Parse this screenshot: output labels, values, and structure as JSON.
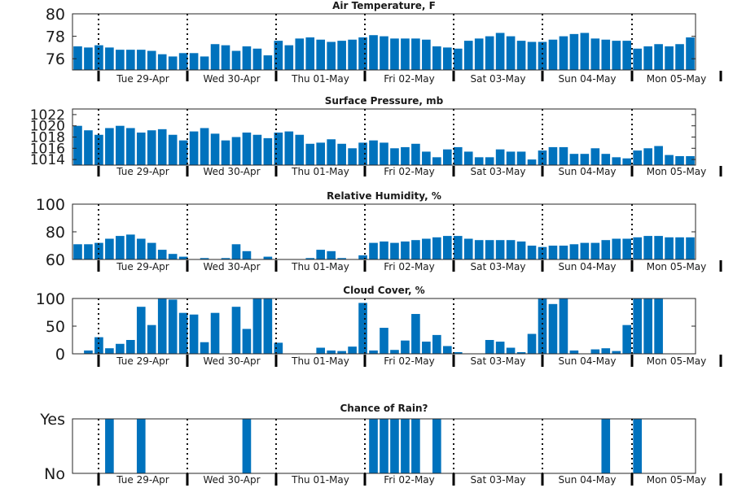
{
  "window": {
    "title": ""
  },
  "chart_data": [
    {
      "type": "bar",
      "title": "Air Temperature, F",
      "ylim": [
        75,
        80
      ],
      "yticks": [
        76,
        78,
        80
      ],
      "xlabel": "",
      "ylabel": "",
      "grid": false,
      "color": "#0072bd",
      "days": [
        "Tue 29-Apr",
        "Wed 30-Apr",
        "Thu 01-May",
        "Fri 02-May",
        "Sat 03-May",
        "Sun 04-May",
        "Mon 05-May"
      ],
      "values": [
        77.1,
        77.0,
        77.2,
        77.0,
        76.8,
        76.8,
        76.8,
        76.7,
        76.4,
        76.2,
        76.5,
        76.5,
        76.2,
        77.3,
        77.2,
        76.7,
        77.1,
        76.9,
        76.3,
        77.6,
        77.2,
        77.8,
        77.9,
        77.7,
        77.5,
        77.6,
        77.7,
        77.9,
        78.1,
        78.0,
        77.8,
        77.8,
        77.8,
        77.7,
        77.1,
        77.0,
        76.9,
        77.6,
        77.8,
        78.0,
        78.3,
        78.0,
        77.6,
        77.5,
        77.5,
        77.7,
        78.0,
        78.2,
        78.3,
        77.8,
        77.7,
        77.6,
        77.6,
        76.9,
        77.1,
        77.3,
        77.1,
        77.3,
        77.9
      ]
    },
    {
      "type": "bar",
      "title": "Surface Pressure, mb",
      "ylim": [
        1013,
        1023
      ],
      "yticks": [
        1014,
        1016,
        1018,
        1020,
        1022
      ],
      "xlabel": "",
      "ylabel": "",
      "grid": false,
      "color": "#0072bd",
      "days": [
        "Tue 29-Apr",
        "Wed 30-Apr",
        "Thu 01-May",
        "Fri 02-May",
        "Sat 03-May",
        "Sun 04-May",
        "Mon 05-May"
      ],
      "values": [
        1020.0,
        1019.2,
        1018.4,
        1019.6,
        1020.0,
        1019.6,
        1018.8,
        1019.2,
        1019.4,
        1018.4,
        1017.4,
        1019.0,
        1019.6,
        1018.6,
        1017.4,
        1018.0,
        1018.8,
        1018.4,
        1017.8,
        1018.8,
        1019.0,
        1018.4,
        1016.8,
        1017.0,
        1017.6,
        1016.8,
        1016.0,
        1017.0,
        1017.4,
        1017.0,
        1016.0,
        1016.2,
        1016.8,
        1015.4,
        1014.4,
        1015.8,
        1016.2,
        1015.4,
        1014.4,
        1014.4,
        1015.8,
        1015.4,
        1015.4,
        1014.0,
        1015.6,
        1016.2,
        1016.2,
        1015.0,
        1015.0,
        1016.0,
        1015.0,
        1014.4,
        1014.2,
        1015.6,
        1016.0,
        1016.4,
        1014.8,
        1014.6,
        1014.6
      ]
    },
    {
      "type": "bar",
      "title": "Relative Humidity, %",
      "ylim": [
        60,
        100
      ],
      "yticks": [
        60,
        80,
        100
      ],
      "xlabel": "",
      "ylabel": "",
      "grid": false,
      "color": "#0072bd",
      "days": [
        "Tue 29-Apr",
        "Wed 30-Apr",
        "Thu 01-May",
        "Fri 02-May",
        "Sat 03-May",
        "Sun 04-May",
        "Mon 05-May"
      ],
      "values": [
        71,
        71,
        72,
        75,
        77,
        78,
        75,
        72,
        67,
        64,
        62,
        60,
        61,
        60,
        61,
        71,
        66,
        60,
        62,
        60,
        60,
        60,
        61,
        67,
        66,
        61,
        60,
        63,
        72,
        73,
        72,
        73,
        74,
        75,
        76,
        77,
        77,
        75,
        74,
        74,
        74,
        74,
        73,
        70,
        69,
        70,
        70,
        71,
        72,
        72,
        74,
        75,
        75,
        76,
        77,
        77,
        76,
        76,
        76
      ]
    },
    {
      "type": "bar",
      "title": "Cloud Cover, %",
      "ylim": [
        0,
        100
      ],
      "yticks": [
        0,
        50,
        100
      ],
      "xlabel": "",
      "ylabel": "",
      "grid": false,
      "color": "#0072bd",
      "days": [
        "Tue 29-Apr",
        "Wed 30-Apr",
        "Thu 01-May",
        "Fri 02-May",
        "Sat 03-May",
        "Sun 04-May",
        "Mon 05-May"
      ],
      "values": [
        0,
        6,
        30,
        10,
        18,
        25,
        85,
        52,
        100,
        98,
        74,
        71,
        21,
        74,
        0,
        85,
        45,
        100,
        100,
        20,
        0,
        0,
        0,
        11,
        6,
        5,
        13,
        92,
        6,
        47,
        7,
        24,
        72,
        22,
        34,
        14,
        3,
        0,
        0,
        25,
        22,
        11,
        3,
        36,
        100,
        90,
        100,
        6,
        0,
        8,
        10,
        5,
        52,
        100,
        100,
        100,
        0,
        0,
        0
      ]
    },
    {
      "type": "bar",
      "title": "Chance of Rain?",
      "ylim": [
        0,
        1
      ],
      "yticks": [
        0,
        1
      ],
      "ytick_labels": [
        "No",
        "Yes"
      ],
      "xlabel": "",
      "ylabel": "",
      "grid": false,
      "color": "#0072bd",
      "days": [
        "Tue 29-Apr",
        "Wed 30-Apr",
        "Thu 01-May",
        "Fri 02-May",
        "Sat 03-May",
        "Sun 04-May",
        "Mon 05-May"
      ],
      "values": [
        0,
        0,
        0,
        1,
        0,
        0,
        1,
        0,
        0,
        0,
        0,
        0,
        0,
        0,
        0,
        0,
        1,
        0,
        0,
        0,
        0,
        0,
        0,
        0,
        0,
        0,
        0,
        0,
        1,
        1,
        1,
        1,
        1,
        0,
        1,
        0,
        0,
        0,
        0,
        0,
        0,
        0,
        0,
        0,
        0,
        0,
        0,
        0,
        0,
        0,
        1,
        0,
        0,
        1,
        0,
        0,
        0,
        0,
        0
      ]
    }
  ]
}
